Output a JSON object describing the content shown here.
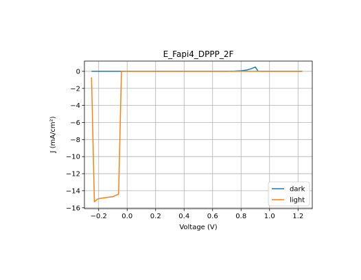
{
  "chart_data": {
    "type": "line",
    "title": "E_Fapi4_DPPP_2F",
    "xlabel": "Voltage (V)",
    "ylabel": "J (mA/cm²)",
    "xlim": [
      -0.3,
      1.3
    ],
    "ylim": [
      -16.1,
      1.2
    ],
    "xticks": [
      -0.2,
      0.0,
      0.2,
      0.4,
      0.6,
      0.8,
      1.0,
      1.2
    ],
    "xtick_labels": [
      "−0.2",
      "0.0",
      "0.2",
      "0.4",
      "0.6",
      "0.8",
      "1.0",
      "1.2"
    ],
    "yticks": [
      0,
      -2,
      -4,
      -6,
      -8,
      -10,
      -12,
      -14,
      -16
    ],
    "ytick_labels": [
      "0",
      "−2",
      "−4",
      "−6",
      "−8",
      "−10",
      "−12",
      "−14",
      "−16"
    ],
    "grid": true,
    "legend_position": "bottom-right",
    "series": [
      {
        "name": "dark",
        "color": "#1f77b4",
        "x": [
          -0.25,
          -0.2,
          -0.1,
          0.0,
          0.2,
          0.4,
          0.6,
          0.7,
          0.75,
          0.8,
          0.84,
          0.87,
          0.9,
          0.92,
          0.95,
          1.0,
          1.1,
          1.23
        ],
        "y": [
          0,
          0,
          0,
          0,
          0,
          0,
          0,
          0,
          0.02,
          0.06,
          0.15,
          0.3,
          0.5,
          0.02,
          0,
          0,
          0,
          0
        ]
      },
      {
        "name": "light",
        "color": "#ff7f0e",
        "x": [
          -0.25,
          -0.23,
          -0.21,
          -0.19,
          -0.15,
          -0.1,
          -0.06,
          -0.04,
          -0.03,
          0.0,
          0.2,
          0.4,
          0.6,
          0.8,
          1.0,
          1.23
        ],
        "y": [
          -0.7,
          -15.3,
          -15.0,
          -14.9,
          -14.8,
          -14.7,
          -14.4,
          0,
          0,
          0,
          0,
          0,
          0,
          0,
          0,
          0
        ]
      }
    ]
  }
}
